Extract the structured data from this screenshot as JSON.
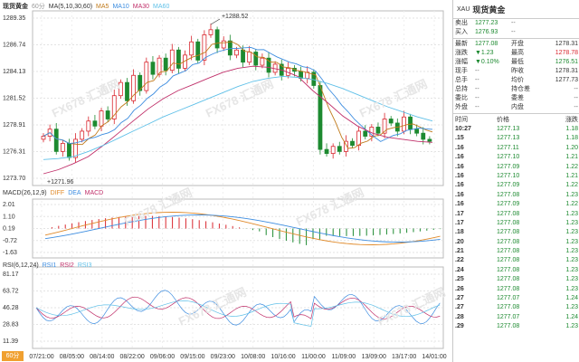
{
  "header": {
    "symbol_label": "现货黄金",
    "period": "60分",
    "ma_label": "MA(5,10,30,60)",
    "ma5": "MA5",
    "ma10": "MA10",
    "ma30": "MA30",
    "ma60": "MA60",
    "macd_label": "MACD(26,12,9)",
    "diff": "DIFF",
    "dea": "DEA",
    "macd": "MACD",
    "rsi_label": "RSI(6,12,24)",
    "rsi1": "RSI1",
    "rsi2": "RSI2",
    "rsi3": "RSI3"
  },
  "colors": {
    "ma5": "#c07a1b",
    "ma10": "#3d8de0",
    "ma30": "#c0306a",
    "ma60": "#5fc0e8",
    "up": "#d9262e",
    "down": "#1d8a30"
  },
  "price_axis": [
    "1289.35",
    "1286.74",
    "1284.13",
    "1281.52",
    "1278.91",
    "1276.31",
    "1273.70"
  ],
  "price_annotations": {
    "high": "1288.52",
    "low": "1271.96"
  },
  "macd_axis": [
    "2.01",
    "1.10",
    "0.19",
    "-0.72",
    "-1.63"
  ],
  "rsi_axis": [
    "81.17",
    "63.72",
    "46.28",
    "28.83",
    "11.39"
  ],
  "time_axis": [
    "07/21:00",
    "08/05:00",
    "08/14:00",
    "08/22:00",
    "09/06:00",
    "09/15:00",
    "09/23:00",
    "10/08:00",
    "10/16:00",
    "11/00:00",
    "11/09:00",
    "13/09:00",
    "13/17:00",
    "14/01:00"
  ],
  "period_tab": "60分",
  "chart_data": {
    "type": "candlestick",
    "ylim": [
      1273.0,
      1289.5
    ],
    "ohlc_close_path": [
      1277.5,
      1278.2,
      1276.0,
      1276.8,
      1275.4,
      1277.2,
      1278.0,
      1279.0,
      1278.5,
      1280.0,
      1279.2,
      1281.5,
      1282.8,
      1281.0,
      1283.5,
      1282.0,
      1284.8,
      1283.6,
      1285.2,
      1284.0,
      1286.0,
      1284.2,
      1285.5,
      1286.8,
      1285.0,
      1287.5,
      1288.0,
      1286.2,
      1286.9,
      1285.5,
      1286.0,
      1284.8,
      1285.8,
      1284.5,
      1285.2,
      1283.8,
      1284.6,
      1283.5,
      1284.2,
      1283.9,
      1283.2,
      1283.8,
      1282.5,
      1276.2,
      1275.8,
      1276.5,
      1276.0,
      1277.0,
      1276.6,
      1278.0,
      1277.5,
      1278.4,
      1277.8,
      1279.2,
      1278.8,
      1278.0,
      1279.4,
      1278.2,
      1277.8,
      1277.2,
      1277.0
    ],
    "ma30_path": [
      1273.8,
      1274.2,
      1274.8,
      1275.5,
      1276.6,
      1277.8,
      1279.0,
      1280.2,
      1281.2,
      1282.0,
      1282.6,
      1283.2,
      1283.8,
      1284.2,
      1284.4,
      1284.3,
      1284.0,
      1283.4,
      1282.0,
      1280.8,
      1279.5,
      1278.5,
      1277.8,
      1277.4,
      1277.2,
      1277.0,
      1276.9
    ],
    "ma60_path": [
      1275.2,
      1275.3,
      1275.5,
      1276.0,
      1276.6,
      1277.3,
      1278.0,
      1278.7,
      1279.4,
      1280.0,
      1280.6,
      1281.2,
      1281.8,
      1282.4,
      1282.9,
      1283.2,
      1283.4,
      1283.3,
      1283.1,
      1282.7,
      1282.2,
      1281.6,
      1281.0,
      1280.4,
      1279.9,
      1279.4,
      1279.0
    ]
  },
  "quote": {
    "title_sym": "XAU",
    "title": "现货黄金",
    "sell_label": "卖出",
    "sell": "1277.23",
    "buy_label": "买入",
    "buy": "1276.93",
    "last_label": "最新",
    "last": "1277.08",
    "open_label": "开盘",
    "open": "1278.31",
    "chg_label": "涨跌",
    "chg": "▼1.23",
    "high_label": "最高",
    "high": "1278.78",
    "pct_label": "涨幅",
    "pct": "▼0.10%",
    "low_label": "最低",
    "low": "1276.51",
    "vol_label": "现手",
    "vol": "--",
    "prev_label": "昨收",
    "prev": "1278.31",
    "total_label": "总手",
    "total": "--",
    "avg_label": "均价",
    "avg": "1277.73",
    "hold_label": "总持",
    "hold": "--",
    "oi_label": "持仓差",
    "oi": "--",
    "wb_label": "委比",
    "wb": "--",
    "wc_label": "委差",
    "wc": "--",
    "out_label": "外盘",
    "out": "--",
    "in_label": "内盘",
    "in": "--"
  },
  "ticks_header": {
    "time": "时间",
    "price": "价格",
    "chg": "涨跌"
  },
  "ticks": [
    {
      "t": "10:27",
      "p": "1277.13",
      "v": "1.18"
    },
    {
      "t": ".15",
      "p": "1277.13",
      "v": "1.18"
    },
    {
      "t": ".16",
      "p": "1277.11",
      "v": "1.20"
    },
    {
      "t": ".16",
      "p": "1277.10",
      "v": "1.21"
    },
    {
      "t": ".16",
      "p": "1277.09",
      "v": "1.22"
    },
    {
      "t": ".16",
      "p": "1277.10",
      "v": "1.21"
    },
    {
      "t": ".16",
      "p": "1277.09",
      "v": "1.22"
    },
    {
      "t": ".16",
      "p": "1277.08",
      "v": "1.23"
    },
    {
      "t": ".16",
      "p": "1277.09",
      "v": "1.22"
    },
    {
      "t": ".17",
      "p": "1277.08",
      "v": "1.23"
    },
    {
      "t": ".17",
      "p": "1277.08",
      "v": "1.23"
    },
    {
      "t": ".18",
      "p": "1277.08",
      "v": "1.23"
    },
    {
      "t": ".20",
      "p": "1277.08",
      "v": "1.23"
    },
    {
      "t": ".21",
      "p": "1277.08",
      "v": "1.23"
    },
    {
      "t": ".22",
      "p": "1277.08",
      "v": "1.23"
    },
    {
      "t": ".24",
      "p": "1277.08",
      "v": "1.23"
    },
    {
      "t": ".25",
      "p": "1277.08",
      "v": "1.23"
    },
    {
      "t": ".26",
      "p": "1277.08",
      "v": "1.23"
    },
    {
      "t": ".27",
      "p": "1277.07",
      "v": "1.24"
    },
    {
      "t": ".27",
      "p": "1277.08",
      "v": "1.23"
    },
    {
      "t": ".28",
      "p": "1277.07",
      "v": "1.24"
    },
    {
      "t": ".29",
      "p": "1277.08",
      "v": "1.23"
    }
  ],
  "watermark": "FX678 汇通网"
}
